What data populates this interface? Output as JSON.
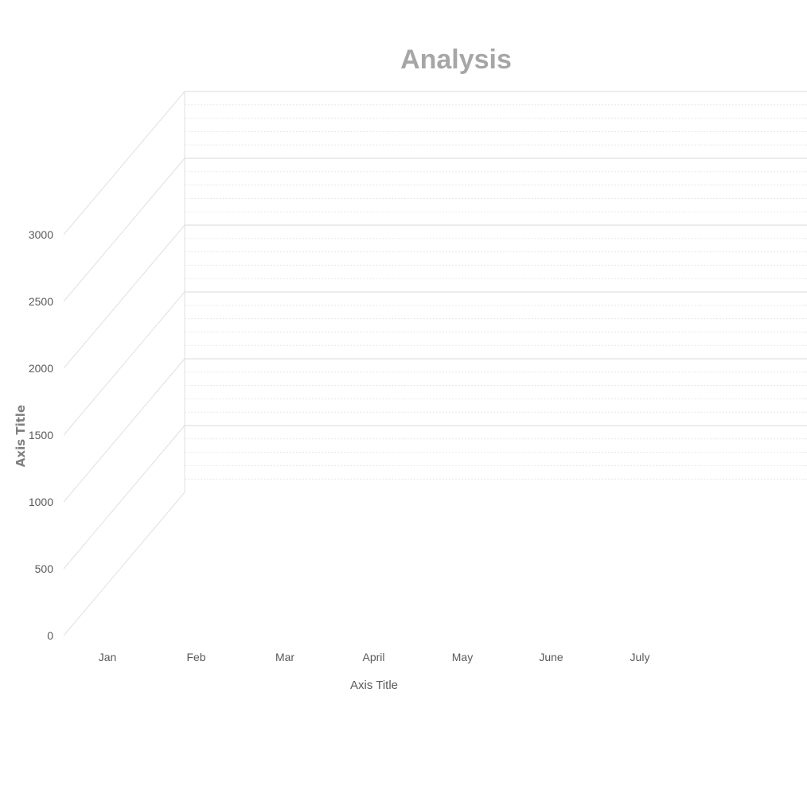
{
  "chart_data": {
    "type": "area",
    "title": "Analysis",
    "xlabel": "Axis Title",
    "ylabel": "Axis Title",
    "categories": [
      "Jan",
      "Feb",
      "Mar",
      "April",
      "May",
      "June",
      "July"
    ],
    "y_ticks": [
      "0",
      "500",
      "1000",
      "1500",
      "2000",
      "2500",
      "3000"
    ],
    "ylim": [
      0,
      3000
    ],
    "projection": "3d",
    "grid": true,
    "legend": "none",
    "series": []
  }
}
